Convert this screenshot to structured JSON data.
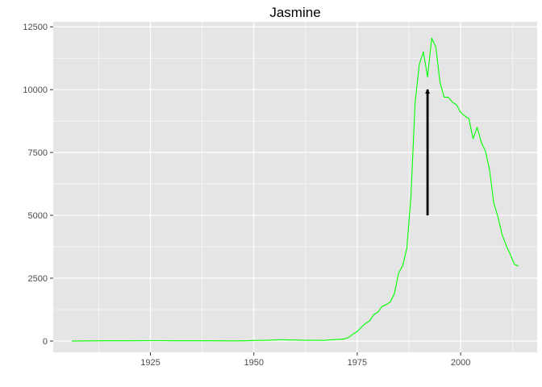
{
  "chart_data": {
    "type": "line",
    "title": "Jasmine",
    "xlabel": "",
    "ylabel": "",
    "xlim": [
      1901.5,
      2018.5
    ],
    "ylim": [
      -450,
      12700
    ],
    "x_ticks": [
      1925,
      1950,
      1975,
      2000
    ],
    "x_tick_labels": [
      "1925",
      "1950",
      "1975",
      "2000"
    ],
    "y_ticks": [
      0,
      2500,
      5000,
      7500,
      10000,
      12500
    ],
    "y_tick_labels": [
      "0",
      "2500",
      "5000",
      "7500",
      "10000",
      "12500"
    ],
    "grid": true,
    "legend": "none",
    "colors": {
      "panel": "#e5e5e5",
      "grid": "#ffffff",
      "line": "#00ff00",
      "segment": "#000000"
    },
    "series": [
      {
        "x": [
          1906,
          1910,
          1915,
          1920,
          1925,
          1928,
          1930,
          1935,
          1940,
          1945,
          1948,
          1950,
          1953,
          1955,
          1957,
          1958,
          1960,
          1962,
          1965,
          1967,
          1968,
          1970,
          1971,
          1972,
          1973,
          1974,
          1975,
          1976,
          1977,
          1978,
          1979,
          1980,
          1981,
          1982,
          1983,
          1984,
          1985,
          1986,
          1987,
          1988,
          1989,
          1990,
          1991,
          1992,
          1993,
          1994,
          1995,
          1996,
          1997,
          1998,
          1999,
          2000,
          2001,
          2002,
          2003,
          2004,
          2005,
          2006,
          2007,
          2008,
          2009,
          2010,
          2011,
          2012,
          2013,
          2014
        ],
        "y": [
          0,
          5,
          10,
          8,
          15,
          15,
          10,
          10,
          10,
          5,
          10,
          20,
          30,
          40,
          55,
          40,
          40,
          30,
          30,
          25,
          40,
          60,
          70,
          90,
          150,
          280,
          380,
          550,
          700,
          800,
          1050,
          1150,
          1380,
          1450,
          1550,
          1900,
          2700,
          3000,
          3700,
          5800,
          9500,
          11000,
          11500,
          10500,
          12050,
          11700,
          10300,
          9700,
          9700,
          9500,
          9400,
          9100,
          8950,
          8850,
          8050,
          8500,
          7900,
          7550,
          6800,
          5500,
          4950,
          4250,
          3800,
          3450,
          3050,
          2980
        ]
      }
    ],
    "segment": {
      "x": 1992,
      "y_start": 5000,
      "y_end": 10000
    }
  }
}
